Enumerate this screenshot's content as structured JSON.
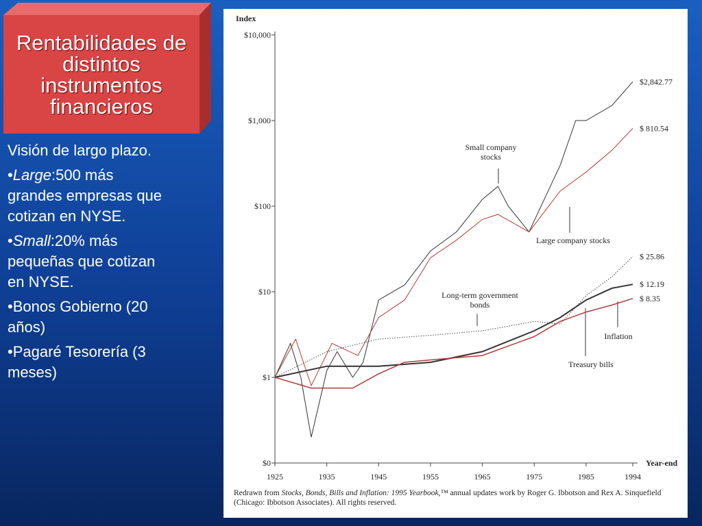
{
  "slide": {
    "title": "Rentabilidades de distintos instrumentos financieros",
    "bullet": "•",
    "intro": "Visión de largo plazo.",
    "items": [
      {
        "em": "Large",
        "text": ":500 más grandes empresas que cotizan en NYSE."
      },
      {
        "em": "Small",
        "text": ":20% más pequeñas que cotizan en NYSE."
      },
      {
        "em": null,
        "text": "Bonos Gobierno (20 años)"
      },
      {
        "em": null,
        "text": "Pagaré Tesorería (3 meses)"
      }
    ]
  },
  "chart_data": {
    "type": "line",
    "ylabel": "Index",
    "xlabel": "Year-end",
    "log_y": true,
    "caption": [
      "Redrawn from ",
      "Stocks, Bonds, Bills and Inflation: 1995 Yearbook,",
      "™ annual updates work by Roger G. Ibbotson and Rex A. Sinquefield (Chicago: Ibbotson Associates). All rights reserved."
    ],
    "xlim": [
      1925,
      1994
    ],
    "xticks": [
      1925,
      1935,
      1945,
      1955,
      1965,
      1975,
      1985,
      1994
    ],
    "ylim": [
      0.1,
      10000
    ],
    "yticks": [
      {
        "value": 0.1,
        "label": "$0"
      },
      {
        "value": 1,
        "label": "$1"
      },
      {
        "value": 10,
        "label": "$10"
      },
      {
        "value": 100,
        "label": "$100"
      },
      {
        "value": 1000,
        "label": "$1,000"
      },
      {
        "value": 10000,
        "label": "$10,000"
      }
    ],
    "series": [
      {
        "name": "Small company stocks",
        "color": "#333333",
        "style": "solid",
        "width": 1,
        "x": [
          1925,
          1928,
          1930,
          1932,
          1935,
          1937,
          1940,
          1942,
          1945,
          1950,
          1955,
          1960,
          1965,
          1968,
          1970,
          1974,
          1980,
          1983,
          1985,
          1990,
          1994
        ],
        "values": [
          1,
          2.5,
          1,
          0.2,
          1.2,
          2,
          1,
          1.5,
          8,
          12,
          30,
          50,
          120,
          170,
          100,
          50,
          300,
          1000,
          1000,
          1500,
          2842.77
        ],
        "value_labels": [
          null,
          null,
          null,
          null,
          null,
          null,
          null,
          null,
          null,
          null,
          null,
          null,
          null,
          null,
          null,
          null,
          null,
          null,
          null,
          null,
          "$2,842.77"
        ]
      },
      {
        "name": "Large company stocks",
        "color": "#b03a3a",
        "style": "solid",
        "width": 1,
        "x": [
          1925,
          1929,
          1932,
          1936,
          1941,
          1945,
          1950,
          1955,
          1960,
          1965,
          1968,
          1974,
          1980,
          1985,
          1990,
          1994
        ],
        "values": [
          1,
          2.8,
          0.8,
          2.5,
          1.8,
          5,
          8,
          25,
          40,
          70,
          80,
          50,
          150,
          250,
          450,
          810.54
        ],
        "value_labels": [
          null,
          null,
          null,
          null,
          null,
          null,
          null,
          null,
          null,
          null,
          null,
          null,
          null,
          null,
          null,
          "$ 810.54"
        ]
      },
      {
        "name": "Long-term government bonds",
        "color": "#444444",
        "style": "dotted",
        "width": 1,
        "x": [
          1925,
          1935,
          1945,
          1955,
          1965,
          1975,
          1980,
          1985,
          1990,
          1994
        ],
        "values": [
          1,
          2,
          2.8,
          3.1,
          3.5,
          4.5,
          4.2,
          9,
          15,
          25.86
        ],
        "value_labels": [
          null,
          null,
          null,
          null,
          null,
          null,
          null,
          null,
          null,
          "$ 25.86"
        ]
      },
      {
        "name": "Treasury bills",
        "color": "#333333",
        "style": "solid",
        "width": 2,
        "x": [
          1925,
          1935,
          1945,
          1955,
          1965,
          1975,
          1980,
          1985,
          1990,
          1994
        ],
        "values": [
          1,
          1.35,
          1.35,
          1.5,
          2,
          3.5,
          5,
          8,
          11,
          12.19
        ],
        "value_labels": [
          null,
          null,
          null,
          null,
          null,
          null,
          null,
          null,
          null,
          "$ 12.19"
        ]
      },
      {
        "name": "Inflation",
        "color": "#b03a3a",
        "style": "solid",
        "width": 1.5,
        "x": [
          1925,
          1932,
          1940,
          1945,
          1950,
          1955,
          1965,
          1975,
          1980,
          1985,
          1990,
          1994
        ],
        "values": [
          1,
          0.75,
          0.75,
          1.1,
          1.5,
          1.6,
          1.8,
          3,
          4.5,
          5.8,
          7,
          8.35
        ],
        "value_labels": [
          null,
          null,
          null,
          null,
          null,
          null,
          null,
          null,
          null,
          null,
          null,
          "$ 8.35"
        ]
      }
    ]
  }
}
